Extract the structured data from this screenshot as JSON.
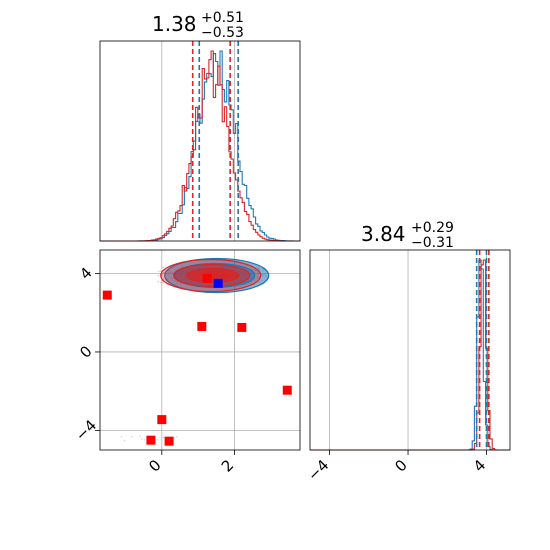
{
  "chart_data": {
    "type": "corner",
    "colors": {
      "series_a": "#1f77b4",
      "series_b": "#d62728",
      "points": "#ff0000",
      "truth": "#0000ff",
      "grid": "#b0b0b0"
    },
    "panels": [
      {
        "id": "hist-x",
        "type": "histogram",
        "title": {
          "median": "1.38",
          "plus": "+0.51",
          "minus": "−0.53"
        },
        "xlim": [
          -1.7,
          3.8
        ],
        "grid_x": [
          0,
          2
        ],
        "grid": true,
        "series": [
          {
            "color": "#1f77b4",
            "quantiles": [
              1.03,
              2.1
            ],
            "peak_at": 1.5,
            "spread": 0.52
          },
          {
            "color": "#d62728",
            "quantiles": [
              0.85,
              1.88
            ],
            "peak_at": 1.38,
            "spread": 0.5
          }
        ]
      },
      {
        "id": "hist-y",
        "type": "histogram",
        "title": {
          "median": "3.84",
          "plus": "+0.29",
          "minus": "−0.31"
        },
        "xlim": [
          -5.0,
          5.2
        ],
        "xticks": [
          -4,
          0,
          4
        ],
        "xtick_labels": [
          "−4",
          "0",
          "4"
        ],
        "grid_x": [
          -4,
          0,
          4
        ],
        "grid": true,
        "series": [
          {
            "color": "#1f77b4",
            "quantiles": [
              3.5,
              4.0
            ],
            "peak_at": 3.7,
            "spread": 0.15
          },
          {
            "color": "#d62728",
            "quantiles": [
              3.65,
              4.12
            ],
            "peak_at": 3.85,
            "spread": 0.16
          }
        ]
      },
      {
        "id": "scatter-xy",
        "type": "scatter",
        "xlim": [
          -1.7,
          3.8
        ],
        "ylim": [
          -5.0,
          5.2
        ],
        "xticks": [
          0,
          2
        ],
        "xtick_labels": [
          "0",
          "2"
        ],
        "yticks": [
          -4,
          0,
          4
        ],
        "ytick_labels": [
          "−4",
          "0",
          "4"
        ],
        "grid": true,
        "contour_center": [
          1.4,
          3.9
        ],
        "points": [
          {
            "x": -1.5,
            "y": 2.9
          },
          {
            "x": 1.1,
            "y": 1.3
          },
          {
            "x": 2.2,
            "y": 1.25
          },
          {
            "x": 3.45,
            "y": -1.95
          },
          {
            "x": 0.0,
            "y": -3.45
          },
          {
            "x": -0.3,
            "y": -4.5
          },
          {
            "x": 0.2,
            "y": -4.55
          },
          {
            "x": 1.25,
            "y": 3.75
          }
        ],
        "truth": {
          "x": 1.55,
          "y": 3.5
        }
      }
    ]
  }
}
